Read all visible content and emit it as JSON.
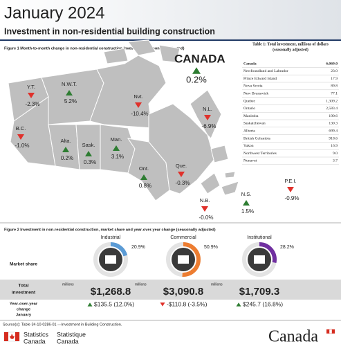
{
  "header": {
    "title": "January 2024",
    "subtitle": "Investment in non-residential building construction"
  },
  "figure1": {
    "title": "Figure 1  Month-to-month change in non-residential construction investment (seasonally adjusted)",
    "canada": {
      "label": "CANADA",
      "value": "0.2%"
    },
    "regions": [
      {
        "label": "Y.T.",
        "value": "-2.3%"
      },
      {
        "label": "N.W.T.",
        "value": "5.2%"
      },
      {
        "label": "Nvt.",
        "value": "-10.4%"
      },
      {
        "label": "B.C.",
        "value": "-1.0%"
      },
      {
        "label": "Alta.",
        "value": "0.2%"
      },
      {
        "label": "Sask.",
        "value": "0.3%"
      },
      {
        "label": "Man.",
        "value": "3.1%"
      },
      {
        "label": "Ont.",
        "value": "0.8%"
      },
      {
        "label": "Que.",
        "value": "-0.3%"
      },
      {
        "label": "N.L.",
        "value": "-6.9%"
      },
      {
        "label": "P.E.I.",
        "value": "-0.9%"
      },
      {
        "label": "N.S.",
        "value": "1.5%"
      },
      {
        "label": "N.B.",
        "value": "-0.0%"
      }
    ]
  },
  "table": {
    "title": [
      "Table 1: Total investment, millions of dollars",
      "(seasonally adjusted)"
    ],
    "rows": [
      [
        "Canada",
        "6,069.0"
      ],
      [
        "Newfoundland and Labrador",
        "23.0"
      ],
      [
        "Prince Edward Island",
        "17.9"
      ],
      [
        "Nova Scotia",
        "89.8"
      ],
      [
        "New Brunswick",
        "77.1"
      ],
      [
        "Quebec",
        "1,309.2"
      ],
      [
        "Ontario",
        "2,583.4"
      ],
      [
        "Manitoba",
        "190.6"
      ],
      [
        "Saskatchewan",
        "130.3"
      ],
      [
        "Alberta",
        "699.4"
      ],
      [
        "British Columbia",
        "918.6"
      ],
      [
        "Yukon",
        "16.9"
      ],
      [
        "Northwest Territories",
        "9.0"
      ],
      [
        "Nunavut",
        "3.7"
      ]
    ]
  },
  "figure2": {
    "title": "Figure 2  Investment in non-residential construction, market share and year-over-year change (seasonally adjusted)",
    "row_labels": {
      "market_share": "Market share",
      "total": [
        "Total",
        "investment"
      ],
      "yoy": [
        "Year-over-year",
        "change",
        "January"
      ]
    },
    "sectors": [
      {
        "name": "Industrial",
        "share": 20.9,
        "share_label": "20.9%",
        "color": "#5b9bd5",
        "unit": "millions",
        "total": "$1,268.8",
        "yoy": "$135.5 (12.0%)"
      },
      {
        "name": "Commercial",
        "share": 50.9,
        "share_label": "50.9%",
        "color": "#ed7d31",
        "unit": "millions",
        "total": "$3,090.8",
        "yoy": "-$110.8 (-3.5%)"
      },
      {
        "name": "Institutional",
        "share": 28.2,
        "share_label": "28.2%",
        "color": "#7030a0",
        "unit": "millions",
        "total": "$1,709.3",
        "yoy": "$245.7 (16.8%)"
      }
    ]
  },
  "footer": {
    "source": "Source(s): Table 34-10-0286-01 —Investment in Building Construction.",
    "agency_en": [
      "Statistics",
      "Canada"
    ],
    "agency_fr": [
      "Statistique",
      "Canada"
    ],
    "wordmark": "Canada"
  }
}
